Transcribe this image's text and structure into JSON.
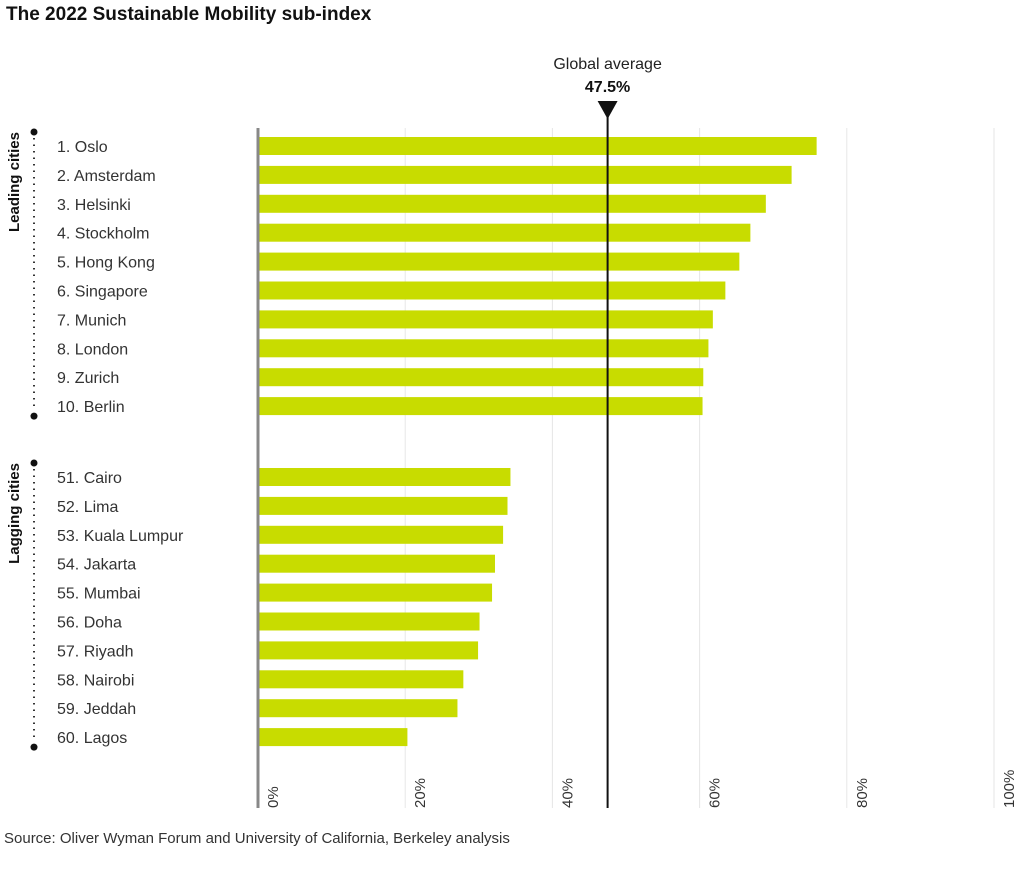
{
  "title": "The 2022 Sustainable Mobility sub-index",
  "source": "Source: Oliver Wyman Forum and University of California, Berkeley analysis",
  "chart_data": {
    "type": "bar",
    "orientation": "horizontal",
    "title": "The 2022 Sustainable Mobility sub-index",
    "xlim": [
      0,
      100
    ],
    "x_ticks": [
      "0%",
      "20%",
      "40%",
      "60%",
      "80%",
      "100%"
    ],
    "grid": true,
    "bar_color": "#c8dc00",
    "reference_line": {
      "label": "Global average",
      "value_label": "47.5%",
      "value": 47.5
    },
    "groups": [
      {
        "name": "Leading cities",
        "categories": [
          "1. Oslo",
          "2. Amsterdam",
          "3. Helsinki",
          "4. Stockholm",
          "5. Hong Kong",
          "6. Singapore",
          "7. Munich",
          "8. London",
          "9. Zurich",
          "10. Berlin"
        ],
        "values": [
          75.9,
          72.5,
          69.0,
          66.9,
          65.4,
          63.5,
          61.8,
          61.2,
          60.5,
          60.4
        ]
      },
      {
        "name": "Lagging cities",
        "categories": [
          "51. Cairo",
          "52. Lima",
          "53. Kuala Lumpur",
          "54. Jakarta",
          "55. Mumbai",
          "56. Doha",
          "57. Riyadh",
          "58. Nairobi",
          "59. Jeddah",
          "60. Lagos"
        ],
        "values": [
          34.3,
          33.9,
          33.3,
          32.2,
          31.8,
          30.1,
          29.9,
          27.9,
          27.1,
          20.3
        ]
      }
    ]
  }
}
